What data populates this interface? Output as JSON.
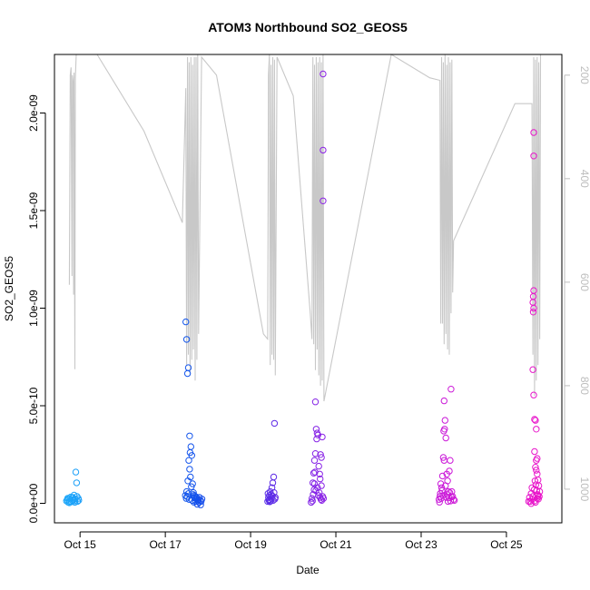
{
  "chart_data": {
    "type": "scatter",
    "title": "ATOM3 Northbound SO2_GEOS5",
    "xlabel": "Date",
    "ylabel": "SO2_GEOS5",
    "x_range_days": [
      14.4,
      26.3
    ],
    "ylim": [
      -1e-10,
      2.3e-09
    ],
    "y_ticks": [
      0,
      5e-10,
      1e-09,
      1.5e-09,
      2e-09
    ],
    "y_tick_labels": [
      "0.0e+00",
      "5.0e-10",
      "1.0e-09",
      "1.5e-09",
      "2.0e-09"
    ],
    "x_ticks": [
      15,
      17,
      19,
      21,
      23,
      25
    ],
    "x_tick_labels": [
      "Oct 15",
      "Oct 17",
      "Oct 19",
      "Oct 21",
      "Oct 23",
      "Oct 25"
    ],
    "right_axis": {
      "label": "",
      "reversed": true,
      "range": [
        160,
        1065
      ],
      "ticks": [
        200,
        400,
        600,
        800,
        1000
      ],
      "tick_labels": [
        "200",
        "400",
        "600",
        "800",
        "1000"
      ],
      "color": "#bdbdbd"
    },
    "series": [
      {
        "name": "SO2_GEOS5",
        "points": [
          [
            14.68,
            1.2e-11
          ],
          [
            14.7,
            1.8e-11
          ],
          [
            14.72,
            6e-12
          ],
          [
            14.74,
            2.4e-11
          ],
          [
            14.76,
            1e-11
          ],
          [
            14.78,
            3.2e-11
          ],
          [
            14.8,
            8e-12
          ],
          [
            14.82,
            1.5e-11
          ],
          [
            14.83,
            3e-11
          ],
          [
            14.85,
            2e-11
          ],
          [
            14.86,
            4.2e-11
          ],
          [
            14.87,
            1.2e-11
          ],
          [
            14.89,
            2.2e-11
          ],
          [
            14.9,
            1.6e-10
          ],
          [
            14.92,
            1.05e-10
          ],
          [
            14.94,
            1e-11
          ],
          [
            14.96,
            2.5e-11
          ],
          [
            14.97,
            1.6e-11
          ],
          [
            14.75,
            3e-12
          ],
          [
            14.81,
            2.8e-11
          ],
          [
            14.88,
            5e-12
          ],
          [
            14.93,
            3.5e-11
          ],
          [
            14.71,
            2.6e-11
          ],
          [
            17.48,
            9.3e-10
          ],
          [
            17.5,
            8.4e-10
          ],
          [
            17.52,
            6.65e-10
          ],
          [
            17.54,
            6.95e-10
          ],
          [
            17.57,
            3.45e-10
          ],
          [
            17.6,
            2.9e-10
          ],
          [
            17.58,
            2.6e-10
          ],
          [
            17.62,
            2.45e-10
          ],
          [
            17.55,
            2.2e-10
          ],
          [
            17.57,
            1.75e-10
          ],
          [
            17.59,
            1.35e-10
          ],
          [
            17.53,
            1.15e-10
          ],
          [
            17.64,
            1e-10
          ],
          [
            17.61,
            8.5e-11
          ],
          [
            17.5,
            6e-11
          ],
          [
            17.66,
            5.5e-11
          ],
          [
            17.68,
            4e-11
          ],
          [
            17.7,
            3.5e-11
          ],
          [
            17.72,
            2.5e-11
          ],
          [
            17.74,
            2e-11
          ],
          [
            17.76,
            1.2e-11
          ],
          [
            17.78,
            1.8e-11
          ],
          [
            17.8,
            3e-11
          ],
          [
            17.82,
            1.5e-11
          ],
          [
            17.84,
            1e-11
          ],
          [
            17.47,
            4e-11
          ],
          [
            17.49,
            2.5e-11
          ],
          [
            17.51,
            3.5e-11
          ],
          [
            17.54,
            5e-11
          ],
          [
            17.56,
            2e-11
          ],
          [
            17.63,
            1.5e-11
          ],
          [
            17.65,
            4.5e-11
          ],
          [
            17.67,
            6e-12
          ],
          [
            17.69,
            2.8e-11
          ],
          [
            17.71,
            1e-11
          ],
          [
            17.73,
            3.2e-11
          ],
          [
            17.75,
            -5e-12
          ],
          [
            17.79,
            5e-12
          ],
          [
            17.83,
            -8e-12
          ],
          [
            17.86,
            2.2e-11
          ],
          [
            19.4,
            1e-11
          ],
          [
            19.42,
            3e-11
          ],
          [
            19.44,
            2e-11
          ],
          [
            19.46,
            6e-11
          ],
          [
            19.48,
            4.5e-11
          ],
          [
            19.5,
            8e-11
          ],
          [
            19.52,
            1.05e-10
          ],
          [
            19.54,
            1.35e-10
          ],
          [
            19.56,
            4.1e-10
          ],
          [
            19.44,
            4e-11
          ],
          [
            19.47,
            1.2e-11
          ],
          [
            19.49,
            2.5e-11
          ],
          [
            19.51,
            3.8e-11
          ],
          [
            19.53,
            1.5e-11
          ],
          [
            19.55,
            5.5e-11
          ],
          [
            19.57,
            2.2e-11
          ],
          [
            19.58,
            3e-11
          ],
          [
            19.41,
            5e-11
          ],
          [
            19.43,
            1.5e-11
          ],
          [
            19.45,
            8e-12
          ],
          [
            20.42,
            5e-12
          ],
          [
            20.44,
            2.5e-11
          ],
          [
            20.46,
            1.05e-10
          ],
          [
            20.48,
            1.55e-10
          ],
          [
            20.5,
            2.2e-10
          ],
          [
            20.52,
            2.55e-10
          ],
          [
            20.54,
            3.8e-10
          ],
          [
            20.52,
            5.2e-10
          ],
          [
            20.56,
            3.6e-10
          ],
          [
            20.58,
            3.5e-10
          ],
          [
            20.55,
            3.3e-10
          ],
          [
            20.6,
            1.9e-10
          ],
          [
            20.62,
            1.5e-10
          ],
          [
            20.64,
            2.5e-10
          ],
          [
            20.66,
            2.35e-10
          ],
          [
            20.68,
            3.4e-10
          ],
          [
            20.7,
            2.2e-09
          ],
          [
            20.7,
            1.81e-09
          ],
          [
            20.7,
            1.55e-09
          ],
          [
            20.5,
            1e-10
          ],
          [
            20.53,
            6.5e-11
          ],
          [
            20.57,
            8e-11
          ],
          [
            20.59,
            4e-11
          ],
          [
            20.61,
            5.5e-11
          ],
          [
            20.63,
            3e-11
          ],
          [
            20.65,
            2e-11
          ],
          [
            20.67,
            1.5e-11
          ],
          [
            20.69,
            3.5e-11
          ],
          [
            20.71,
            2.5e-11
          ],
          [
            20.47,
            4.5e-11
          ],
          [
            20.45,
            1.2e-11
          ],
          [
            20.49,
            7e-11
          ],
          [
            20.51,
            1.6e-10
          ],
          [
            20.63,
            1.25e-10
          ],
          [
            20.66,
            9e-11
          ],
          [
            23.42,
            2e-11
          ],
          [
            23.44,
            3.5e-11
          ],
          [
            23.46,
            1e-10
          ],
          [
            23.48,
            8e-11
          ],
          [
            23.5,
            1.4e-10
          ],
          [
            23.52,
            2.35e-10
          ],
          [
            23.54,
            2.2e-10
          ],
          [
            23.53,
            3.7e-10
          ],
          [
            23.55,
            3.8e-10
          ],
          [
            23.56,
            4.25e-10
          ],
          [
            23.54,
            5.25e-10
          ],
          [
            23.58,
            3.35e-10
          ],
          [
            23.6,
            1.5e-10
          ],
          [
            23.62,
            1.15e-10
          ],
          [
            23.64,
            6e-11
          ],
          [
            23.66,
            1.65e-10
          ],
          [
            23.68,
            2.2e-10
          ],
          [
            23.7,
            5.85e-10
          ],
          [
            23.72,
            6e-11
          ],
          [
            23.74,
            3.5e-11
          ],
          [
            23.76,
            2e-11
          ],
          [
            23.78,
            1.5e-11
          ],
          [
            23.45,
            5e-11
          ],
          [
            23.47,
            2.5e-11
          ],
          [
            23.49,
            6.5e-11
          ],
          [
            23.51,
            4e-11
          ],
          [
            23.57,
            9e-11
          ],
          [
            23.59,
            3e-11
          ],
          [
            23.61,
            4.5e-11
          ],
          [
            23.63,
            1e-11
          ],
          [
            23.65,
            2.8e-11
          ],
          [
            23.67,
            5.5e-11
          ],
          [
            23.69,
            1.2e-11
          ],
          [
            23.71,
            3.3e-11
          ],
          [
            23.43,
            6e-12
          ],
          [
            25.52,
            1e-11
          ],
          [
            25.54,
            3e-11
          ],
          [
            25.56,
            1e-11
          ],
          [
            25.58,
            5e-11
          ],
          [
            25.6,
            8e-11
          ],
          [
            25.62,
            6.85e-10
          ],
          [
            25.63,
            1.06e-09
          ],
          [
            25.64,
            1.09e-09
          ],
          [
            25.62,
            1.03e-09
          ],
          [
            25.64,
            1e-09
          ],
          [
            25.63,
            9.8e-10
          ],
          [
            25.64,
            1.78e-09
          ],
          [
            25.64,
            1.9e-09
          ],
          [
            25.64,
            5.55e-10
          ],
          [
            25.66,
            4.3e-10
          ],
          [
            25.68,
            4.25e-10
          ],
          [
            25.7,
            3.8e-10
          ],
          [
            25.72,
            2.3e-10
          ],
          [
            25.7,
            2.2e-10
          ],
          [
            25.66,
            2.65e-10
          ],
          [
            25.68,
            1.85e-10
          ],
          [
            25.7,
            1.7e-10
          ],
          [
            25.72,
            1.5e-10
          ],
          [
            25.74,
            1.2e-10
          ],
          [
            25.76,
            9e-11
          ],
          [
            25.78,
            6e-11
          ],
          [
            25.74,
            4e-11
          ],
          [
            25.72,
            2.5e-11
          ],
          [
            25.66,
            1.2e-11
          ],
          [
            25.68,
            5e-12
          ],
          [
            25.58,
            -1e-12
          ],
          [
            25.62,
            3.5e-11
          ],
          [
            25.65,
            7e-11
          ],
          [
            25.67,
            1.15e-10
          ],
          [
            25.69,
            9.5e-11
          ],
          [
            25.71,
            6.5e-11
          ],
          [
            25.73,
            4.5e-11
          ],
          [
            25.75,
            2.2e-11
          ],
          [
            25.77,
            3.5e-11
          ],
          [
            25.6,
            2e-11
          ]
        ]
      }
    ],
    "altitude_trace": [
      [
        14.75,
        605
      ],
      [
        14.77,
        200
      ],
      [
        14.79,
        185
      ],
      [
        14.81,
        588
      ],
      [
        14.82,
        200
      ],
      [
        14.84,
        215
      ],
      [
        14.85,
        624
      ],
      [
        14.86,
        195
      ],
      [
        14.88,
        768
      ],
      [
        14.89,
        205
      ],
      [
        14.91,
        160
      ],
      [
        15.2,
        160
      ],
      [
        15.4,
        160
      ],
      [
        16.5,
        308
      ],
      [
        17.4,
        485
      ],
      [
        17.48,
        225
      ],
      [
        17.5,
        760
      ],
      [
        17.52,
        165
      ],
      [
        17.54,
        740
      ],
      [
        17.56,
        175
      ],
      [
        17.58,
        780
      ],
      [
        17.6,
        165
      ],
      [
        17.62,
        750
      ],
      [
        17.64,
        180
      ],
      [
        17.66,
        730
      ],
      [
        17.68,
        165
      ],
      [
        17.7,
        790
      ],
      [
        17.72,
        165
      ],
      [
        17.74,
        750
      ],
      [
        17.76,
        160
      ],
      [
        17.78,
        700
      ],
      [
        17.85,
        165
      ],
      [
        18.2,
        200
      ],
      [
        19.3,
        700
      ],
      [
        19.4,
        710
      ],
      [
        19.42,
        200
      ],
      [
        19.44,
        160
      ],
      [
        19.46,
        760
      ],
      [
        19.48,
        180
      ],
      [
        19.5,
        740
      ],
      [
        19.52,
        165
      ],
      [
        19.54,
        750
      ],
      [
        19.56,
        170
      ],
      [
        19.58,
        780
      ],
      [
        19.62,
        165
      ],
      [
        20.0,
        240
      ],
      [
        20.4,
        660
      ],
      [
        20.44,
        710
      ],
      [
        20.46,
        165
      ],
      [
        20.48,
        720
      ],
      [
        20.5,
        180
      ],
      [
        20.52,
        770
      ],
      [
        20.54,
        165
      ],
      [
        20.56,
        730
      ],
      [
        20.58,
        175
      ],
      [
        20.6,
        780
      ],
      [
        20.62,
        165
      ],
      [
        20.64,
        800
      ],
      [
        20.66,
        175
      ],
      [
        20.68,
        790
      ],
      [
        20.7,
        160
      ],
      [
        20.72,
        830
      ],
      [
        22.3,
        160
      ],
      [
        23.2,
        205
      ],
      [
        23.44,
        210
      ],
      [
        23.46,
        680
      ],
      [
        23.48,
        165
      ],
      [
        23.5,
        680
      ],
      [
        23.52,
        175
      ],
      [
        23.54,
        720
      ],
      [
        23.56,
        160
      ],
      [
        23.58,
        700
      ],
      [
        23.6,
        180
      ],
      [
        23.62,
        730
      ],
      [
        23.64,
        165
      ],
      [
        23.66,
        740
      ],
      [
        23.68,
        175
      ],
      [
        23.7,
        660
      ],
      [
        23.72,
        170
      ],
      [
        23.74,
        620
      ],
      [
        23.76,
        520
      ],
      [
        25.2,
        255
      ],
      [
        25.6,
        255
      ],
      [
        25.62,
        740
      ],
      [
        25.64,
        165
      ],
      [
        25.66,
        820
      ],
      [
        25.68,
        170
      ],
      [
        25.7,
        790
      ],
      [
        25.72,
        165
      ],
      [
        25.74,
        760
      ],
      [
        25.76,
        175
      ],
      [
        25.78,
        710
      ],
      [
        25.8,
        160
      ]
    ],
    "grid": false,
    "legend": "none"
  }
}
